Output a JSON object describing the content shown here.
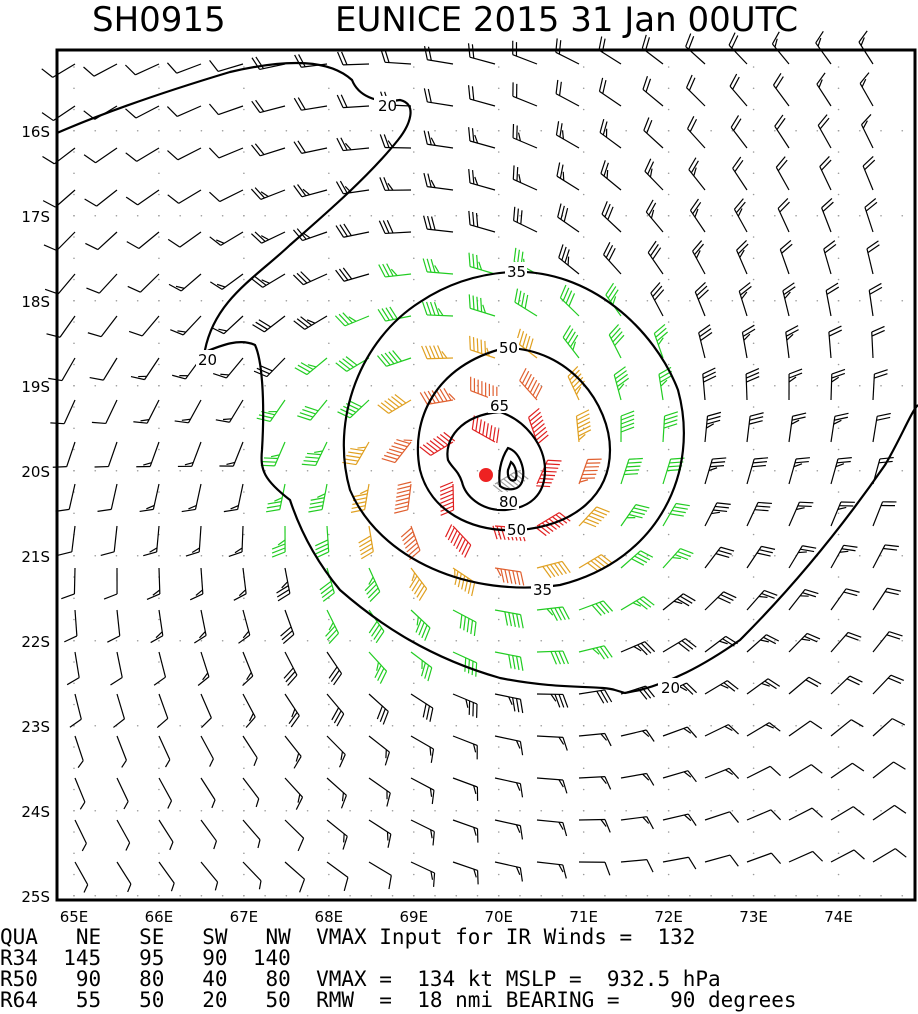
{
  "header": {
    "storm_id": "SH0915",
    "storm_name_time": "EUNICE 2015 31 Jan 00UTC"
  },
  "map": {
    "lon_range": [
      64.8,
      74.9
    ],
    "lat_range": [
      -25.05,
      -15.05
    ],
    "lon_ticks": [
      "65E",
      "66E",
      "67E",
      "68E",
      "69E",
      "70E",
      "71E",
      "72E",
      "73E",
      "74E"
    ],
    "lat_ticks": [
      "16S",
      "17S",
      "18S",
      "19S",
      "20S",
      "21S",
      "22S",
      "23S",
      "24S",
      "25S"
    ],
    "center": {
      "lon": 69.85,
      "lat": -20.05
    },
    "contour_labels": [
      "20",
      "35",
      "50",
      "65",
      "80"
    ],
    "wind_colors": {
      "calm": "#000000",
      "gale": "#22cc22",
      "storm": "#e0a020",
      "hurricane": "#e06030",
      "strong": "#e02020",
      "eye": "#a0a0a0"
    },
    "center_color": "#ee2222"
  },
  "info": {
    "lines": [
      "QUA   NE   SE   SW   NW  VMAX Input for IR Winds =  132",
      "R34  145   95   90  140",
      "R50   90   80   40   80  VMAX =  134 kt MSLP =  932.5 hPa",
      "R64   55   50   20   50  RMW  =  18 nmi BEARING =    90 degrees"
    ]
  }
}
